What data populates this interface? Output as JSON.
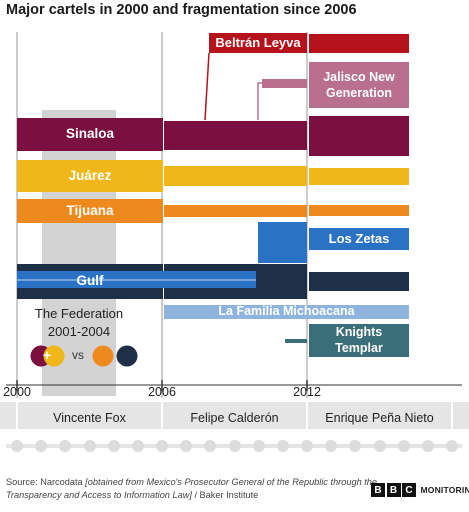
{
  "title": "Major cartels in 2000 and fragmentation since 2006",
  "cartels": {
    "beltran": "Beltrán Leyva",
    "jalisco": [
      "Jalisco New",
      "Generation"
    ],
    "sinaloa": "Sinaloa",
    "juarez": "Juárez",
    "tijuana": "Tijuana",
    "zetas": "Los Zetas",
    "gulf": "Gulf",
    "familia": "La Familia Michoacana",
    "knights": [
      "Knights",
      "Templar"
    ]
  },
  "federation": {
    "name": "The Federation",
    "years": "2001-2004",
    "vs": "vs",
    "plus": "+"
  },
  "years": [
    "2000",
    "2006",
    "2012"
  ],
  "presidents": [
    "Vincente Fox",
    "Felipe Calderón",
    "Enrique Peña Nieto"
  ],
  "source": {
    "prefix": "Source: Narcodata ",
    "italic": "[obtained from Mexico's Prosecutor General of the Republic through the Transparency and Access to Information Law]",
    "suffix": " / Baker Institute"
  },
  "logo": {
    "letters": [
      "B",
      "B",
      "C"
    ],
    "word": "MONITORING"
  },
  "colors": {
    "beltran": "#b5121b",
    "jalisco": "#b8708e",
    "sinaloa": "#7a1040",
    "juarez": "#f0b71b",
    "tijuana": "#ee8a1d",
    "zetas": "#2a72c4",
    "gulf": "#1e3048",
    "familia": "#8eb4de",
    "knights": "#3a6e78",
    "federation_band": "#d3d3d3"
  }
}
